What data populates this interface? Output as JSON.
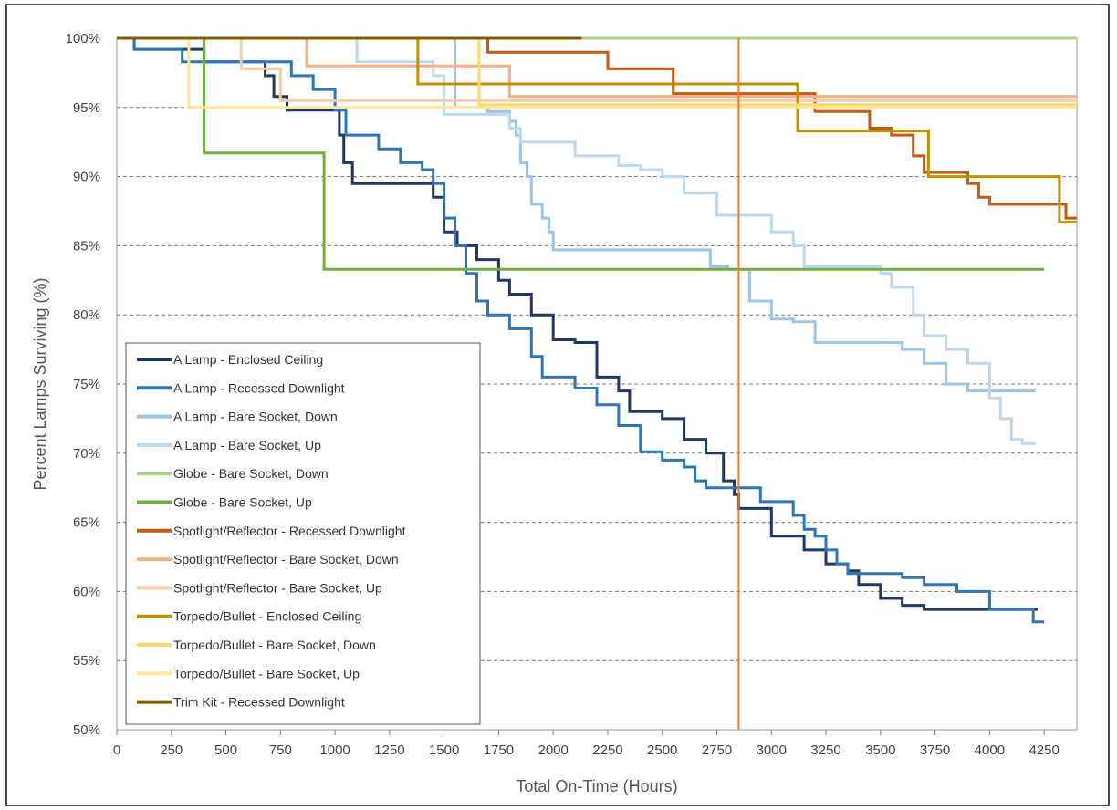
{
  "chart_data": {
    "type": "line",
    "title": "",
    "xlabel": "Total On-Time (Hours)",
    "ylabel": "Percent Lamps Surviving (%)",
    "xlim": [
      0,
      4400
    ],
    "ylim": [
      50,
      100
    ],
    "x_ticks": [
      0,
      250,
      500,
      750,
      1000,
      1250,
      1500,
      1750,
      2000,
      2250,
      2500,
      2750,
      3000,
      3250,
      3500,
      3750,
      4000,
      4250
    ],
    "y_ticks": [
      50,
      55,
      60,
      65,
      70,
      75,
      80,
      85,
      90,
      95,
      100
    ],
    "y_tick_format": "%",
    "grid": "horizontal dashed",
    "legend_position": "bottom-left",
    "reference_line": {
      "x": 2850,
      "color": "#f07d1e"
    },
    "series": [
      {
        "name": "A Lamp - Enclosed Ceiling",
        "color": "#1f3864",
        "points": [
          [
            0,
            100
          ],
          [
            80,
            99.2
          ],
          [
            400,
            98.3
          ],
          [
            600,
            98.3
          ],
          [
            680,
            97.3
          ],
          [
            720,
            95.8
          ],
          [
            780,
            94.8
          ],
          [
            1000,
            94.8
          ],
          [
            1020,
            93
          ],
          [
            1040,
            91
          ],
          [
            1080,
            89.5
          ],
          [
            1200,
            89.5
          ],
          [
            1400,
            89.5
          ],
          [
            1450,
            88.5
          ],
          [
            1500,
            86
          ],
          [
            1560,
            85
          ],
          [
            1650,
            84
          ],
          [
            1750,
            82.5
          ],
          [
            1800,
            81.5
          ],
          [
            1900,
            80
          ],
          [
            2000,
            78.2
          ],
          [
            2100,
            78
          ],
          [
            2200,
            75.5
          ],
          [
            2300,
            74.5
          ],
          [
            2350,
            73
          ],
          [
            2500,
            72.5
          ],
          [
            2600,
            71
          ],
          [
            2700,
            70
          ],
          [
            2780,
            68
          ],
          [
            2830,
            67
          ],
          [
            2850,
            66
          ],
          [
            3000,
            64
          ],
          [
            3150,
            63
          ],
          [
            3250,
            62
          ],
          [
            3350,
            61.5
          ],
          [
            3400,
            60.5
          ],
          [
            3500,
            59.5
          ],
          [
            3600,
            59
          ],
          [
            3700,
            58.7
          ],
          [
            4000,
            58.7
          ],
          [
            4220,
            58.7
          ]
        ]
      },
      {
        "name": "A Lamp - Recessed Downlight",
        "color": "#2e75b6",
        "points": [
          [
            0,
            100
          ],
          [
            80,
            99.2
          ],
          [
            300,
            98.3
          ],
          [
            700,
            98.3
          ],
          [
            800,
            97.3
          ],
          [
            900,
            96.3
          ],
          [
            1000,
            94.8
          ],
          [
            1050,
            93
          ],
          [
            1200,
            92
          ],
          [
            1300,
            91
          ],
          [
            1400,
            90.5
          ],
          [
            1450,
            89.5
          ],
          [
            1500,
            87
          ],
          [
            1550,
            85
          ],
          [
            1600,
            83
          ],
          [
            1650,
            81
          ],
          [
            1700,
            80
          ],
          [
            1800,
            79
          ],
          [
            1900,
            77
          ],
          [
            1950,
            75.5
          ],
          [
            2100,
            74.7
          ],
          [
            2200,
            73.5
          ],
          [
            2300,
            72
          ],
          [
            2400,
            70.1
          ],
          [
            2500,
            69.5
          ],
          [
            2600,
            69
          ],
          [
            2650,
            68
          ],
          [
            2700,
            67.5
          ],
          [
            2850,
            67.5
          ],
          [
            2950,
            66.5
          ],
          [
            3100,
            65.5
          ],
          [
            3150,
            64.5
          ],
          [
            3200,
            64
          ],
          [
            3250,
            63
          ],
          [
            3300,
            62
          ],
          [
            3350,
            61.3
          ],
          [
            3500,
            61.3
          ],
          [
            3600,
            61
          ],
          [
            3700,
            60.5
          ],
          [
            3850,
            60
          ],
          [
            4000,
            58.7
          ],
          [
            4150,
            58.7
          ],
          [
            4200,
            57.8
          ],
          [
            4250,
            57.8
          ]
        ]
      },
      {
        "name": "A Lamp - Bare Socket, Down",
        "color": "#9dc3e6",
        "points": [
          [
            0,
            100
          ],
          [
            1500,
            100
          ],
          [
            1550,
            95
          ],
          [
            1700,
            94.7
          ],
          [
            1800,
            94
          ],
          [
            1830,
            93
          ],
          [
            1850,
            91
          ],
          [
            1880,
            90
          ],
          [
            1900,
            88
          ],
          [
            1950,
            87
          ],
          [
            1980,
            86
          ],
          [
            2000,
            84.7
          ],
          [
            2200,
            84.7
          ],
          [
            2700,
            84.7
          ],
          [
            2720,
            83.5
          ],
          [
            2800,
            83.3
          ],
          [
            2850,
            83.3
          ],
          [
            2900,
            81
          ],
          [
            3000,
            79.7
          ],
          [
            3100,
            79.5
          ],
          [
            3200,
            78
          ],
          [
            3400,
            78
          ],
          [
            3600,
            77.5
          ],
          [
            3700,
            76.5
          ],
          [
            3800,
            75
          ],
          [
            3900,
            74.5
          ],
          [
            4000,
            74.5
          ],
          [
            4210,
            74.5
          ]
        ]
      },
      {
        "name": "A Lamp - Bare Socket, Up",
        "color": "#bdd7ee",
        "points": [
          [
            0,
            100
          ],
          [
            1080,
            100
          ],
          [
            1100,
            98.3
          ],
          [
            1200,
            98.3
          ],
          [
            1400,
            98.3
          ],
          [
            1450,
            97.3
          ],
          [
            1500,
            94.5
          ],
          [
            1600,
            94.5
          ],
          [
            1700,
            94.5
          ],
          [
            1800,
            93.5
          ],
          [
            1850,
            92.5
          ],
          [
            2000,
            92.5
          ],
          [
            2100,
            91.5
          ],
          [
            2300,
            90.8
          ],
          [
            2400,
            90.5
          ],
          [
            2500,
            90
          ],
          [
            2600,
            88.8
          ],
          [
            2750,
            87.2
          ],
          [
            2850,
            87.2
          ],
          [
            3000,
            86
          ],
          [
            3100,
            85
          ],
          [
            3150,
            83.5
          ],
          [
            3400,
            83.5
          ],
          [
            3500,
            83
          ],
          [
            3550,
            82
          ],
          [
            3650,
            80
          ],
          [
            3700,
            78.5
          ],
          [
            3800,
            77.5
          ],
          [
            3900,
            76.5
          ],
          [
            4000,
            74
          ],
          [
            4050,
            72.5
          ],
          [
            4100,
            71
          ],
          [
            4150,
            70.7
          ],
          [
            4210,
            70.7
          ]
        ]
      },
      {
        "name": "Globe - Bare Socket, Down",
        "color": "#a9d18e",
        "points": [
          [
            0,
            100
          ],
          [
            4400,
            100
          ]
        ]
      },
      {
        "name": "Globe - Bare Socket, Up",
        "color": "#70ad47",
        "points": [
          [
            0,
            100
          ],
          [
            390,
            100
          ],
          [
            400,
            91.7
          ],
          [
            940,
            91.7
          ],
          [
            950,
            83.3
          ],
          [
            4250,
            83.3
          ]
        ]
      },
      {
        "name": "Spotlight/Reflector - Recessed Downlight",
        "color": "#c55a11",
        "points": [
          [
            0,
            100
          ],
          [
            1680,
            100
          ],
          [
            1700,
            99
          ],
          [
            2200,
            99
          ],
          [
            2250,
            97.8
          ],
          [
            2500,
            97.8
          ],
          [
            2550,
            96
          ],
          [
            3150,
            96
          ],
          [
            3200,
            94.7
          ],
          [
            3400,
            94.7
          ],
          [
            3450,
            93.5
          ],
          [
            3550,
            93
          ],
          [
            3650,
            91.5
          ],
          [
            3700,
            90.3
          ],
          [
            3800,
            90.3
          ],
          [
            3900,
            89.5
          ],
          [
            3950,
            88.5
          ],
          [
            4000,
            88
          ],
          [
            4300,
            88
          ],
          [
            4350,
            87
          ],
          [
            4400,
            87
          ]
        ]
      },
      {
        "name": "Spotlight/Reflector - Bare Socket, Down",
        "color": "#f4b183",
        "points": [
          [
            0,
            100
          ],
          [
            850,
            100
          ],
          [
            870,
            98
          ],
          [
            1750,
            98
          ],
          [
            1800,
            95.8
          ],
          [
            4400,
            95.8
          ]
        ]
      },
      {
        "name": "Spotlight/Reflector - Bare Socket, Up",
        "color": "#f8cbad",
        "points": [
          [
            0,
            100
          ],
          [
            560,
            100
          ],
          [
            570,
            97.8
          ],
          [
            700,
            97.8
          ],
          [
            750,
            95.5
          ],
          [
            4400,
            95.5
          ]
        ]
      },
      {
        "name": "Torpedo/Bullet - Enclosed Ceiling",
        "color": "#bf9000",
        "points": [
          [
            0,
            100
          ],
          [
            1350,
            100
          ],
          [
            1380,
            96.7
          ],
          [
            1700,
            96.7
          ],
          [
            3100,
            96.7
          ],
          [
            3120,
            93.3
          ],
          [
            3700,
            93.3
          ],
          [
            3720,
            90
          ],
          [
            4300,
            90
          ],
          [
            4320,
            86.7
          ],
          [
            4400,
            86.7
          ]
        ]
      },
      {
        "name": "Torpedo/Bullet - Bare Socket, Down",
        "color": "#ffd966",
        "points": [
          [
            0,
            100
          ],
          [
            1650,
            100
          ],
          [
            1660,
            95.2
          ],
          [
            4400,
            95.2
          ]
        ]
      },
      {
        "name": "Torpedo/Bullet - Bare Socket, Up",
        "color": "#ffe699",
        "points": [
          [
            0,
            100
          ],
          [
            320,
            100
          ],
          [
            330,
            95
          ],
          [
            4400,
            95
          ]
        ]
      },
      {
        "name": "Trim Kit - Recessed Downlight",
        "color": "#7f6000",
        "points": [
          [
            0,
            100
          ],
          [
            2130,
            100
          ]
        ]
      }
    ]
  }
}
